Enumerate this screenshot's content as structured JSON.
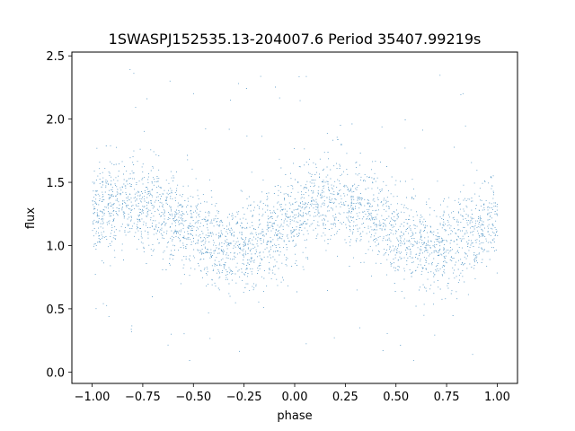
{
  "chart_data": {
    "type": "scatter",
    "title": "1SWASPJ152535.13-204007.6 Period 35407.99219s",
    "xlabel": "phase",
    "ylabel": "flux",
    "xlim": [
      -1.1,
      1.1
    ],
    "ylim": [
      -0.09,
      2.53
    ],
    "xticks": [
      -1.0,
      -0.75,
      -0.5,
      -0.25,
      0.0,
      0.25,
      0.5,
      0.75,
      1.0
    ],
    "xtick_labels": [
      "−1.00",
      "−0.75",
      "−0.50",
      "−0.25",
      "0.00",
      "0.25",
      "0.50",
      "0.75",
      "1.00"
    ],
    "yticks": [
      0.0,
      0.5,
      1.0,
      1.5,
      2.0,
      2.5
    ],
    "ytick_labels": [
      "0.0",
      "0.5",
      "1.0",
      "1.5",
      "2.0",
      "2.5"
    ],
    "grid": false,
    "marker_color": "#1f77b4",
    "x_range": [
      -1.0,
      1.0
    ],
    "model": {
      "description": "folded light curve, sinusoidal modulation with two cycles over phase -1..1",
      "baseline_flux": 1.15,
      "peak_flux": 1.35,
      "trough_flux": 0.98,
      "peaks_at_phase": [
        -0.8,
        0.2
      ],
      "troughs_at_phase": [
        -0.25,
        0.75
      ],
      "scatter_sigma": 0.18,
      "outlier_range": [
        0.05,
        2.4
      ]
    }
  }
}
